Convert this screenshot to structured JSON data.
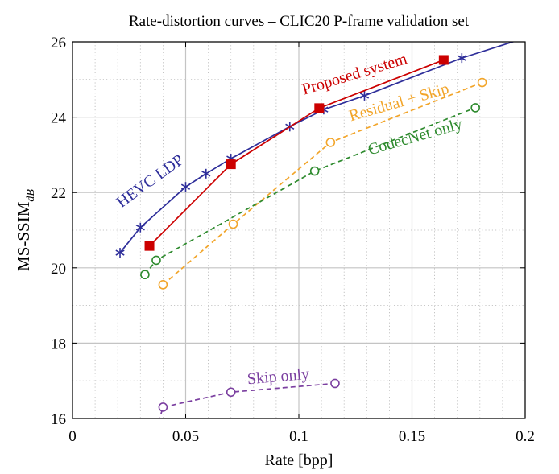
{
  "chart_data": {
    "type": "line",
    "title": "Rate-distortion curves – CLIC20 P-frame validation set",
    "xlabel": "Rate [bpp]",
    "ylabel_main": "MS-SSIM",
    "ylabel_sub": "dB",
    "xlim": [
      0,
      0.2
    ],
    "ylim": [
      16,
      26
    ],
    "xticks": [
      0,
      0.05,
      0.1,
      0.15,
      0.2
    ],
    "xtick_labels": [
      "0",
      "0.05",
      "0.1",
      "0.15",
      "0.2"
    ],
    "yticks": [
      16,
      18,
      20,
      22,
      24,
      26
    ],
    "ytick_labels": [
      "16",
      "18",
      "20",
      "22",
      "24",
      "26"
    ],
    "grid": true,
    "legend": "inline labels",
    "series": [
      {
        "name": "HEVC LDP",
        "color": "#2e2e9a",
        "marker": "star",
        "dashed": false,
        "label_angle": -36,
        "x": [
          0.021,
          0.03,
          0.05,
          0.059,
          0.07,
          0.096,
          0.111,
          0.129,
          0.172,
          0.205
        ],
        "y": [
          20.4,
          21.07,
          22.15,
          22.5,
          22.9,
          23.75,
          24.2,
          24.57,
          25.57,
          26.2
        ]
      },
      {
        "name": "Proposed system",
        "color": "#cc0000",
        "marker": "square",
        "dashed": false,
        "label_angle": -17,
        "x": [
          0.034,
          0.07,
          0.109,
          0.164
        ],
        "y": [
          20.58,
          22.75,
          24.24,
          25.52
        ]
      },
      {
        "name": "Residual + Skip",
        "color": "#f2a52a",
        "marker": "circle",
        "dashed": true,
        "label_angle": -16,
        "x": [
          0.04,
          0.071,
          0.114,
          0.181
        ],
        "y": [
          19.55,
          21.16,
          23.33,
          24.92
        ]
      },
      {
        "name": "CodecNet only",
        "color": "#2d8a2d",
        "marker": "circle",
        "dashed": true,
        "label_angle": -16,
        "x": [
          0.032,
          0.037,
          0.107,
          0.178
        ],
        "y": [
          19.82,
          20.2,
          22.57,
          24.25
        ]
      },
      {
        "name": "Skip only",
        "color": "#7b3fa0",
        "marker": "circle",
        "dashed": true,
        "label_angle": -5,
        "x": [
          0.037,
          0.04,
          0.07,
          0.116
        ],
        "y": [
          15.7,
          16.3,
          16.7,
          16.93
        ]
      }
    ]
  }
}
